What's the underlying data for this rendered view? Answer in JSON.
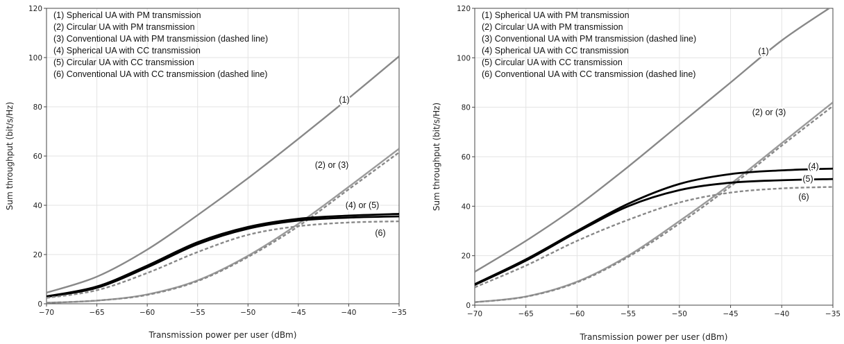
{
  "chart_data": [
    {
      "type": "line",
      "xlabel": "Transmission power per user (dBm)",
      "ylabel": "Sum throughput (bit/s/Hz)",
      "xlim": [
        -70,
        -35
      ],
      "ylim": [
        0,
        120
      ],
      "x_ticks": [
        "−70",
        "−65",
        "−60",
        "−55",
        "−50",
        "−45",
        "−40",
        "−35"
      ],
      "y_ticks": [
        "0",
        "20",
        "40",
        "60",
        "80",
        "100",
        "120"
      ],
      "grid": true,
      "legend_position": "top-left",
      "legend": [
        "(1) Spherical UA with PM transmission",
        "(2) Circular UA with PM transmission",
        "(3) Conventional UA with PM transmission (dashed line)",
        "(4) Spherical UA with CC transmission",
        "(5) Circular UA with CC transmission",
        "(6) Conventional UA with CC transmission (dashed line)"
      ],
      "x": [
        -70,
        -65,
        -60,
        -55,
        -50,
        -45,
        -40,
        -35
      ],
      "series": [
        {
          "name": "(1) Spherical UA with PM transmission",
          "style": "solid",
          "color": "#888888",
          "values": [
            4.5,
            11,
            22,
            36,
            51,
            67,
            83.5,
            100.5
          ]
        },
        {
          "name": "(2) Circular UA with PM transmission",
          "style": "solid",
          "color": "#9a9a9a",
          "values": [
            0.4,
            1.3,
            3.8,
            9.5,
            19.5,
            32.5,
            47.5,
            63
          ]
        },
        {
          "name": "(3) Conventional UA with PM transmission (dashed line)",
          "style": "dashed",
          "color": "#888888",
          "values": [
            0.4,
            1.3,
            3.6,
            9.2,
            19,
            31.5,
            46.5,
            61.5
          ]
        },
        {
          "name": "(4) Spherical UA with CC transmission",
          "style": "solid",
          "color": "#000000",
          "values": [
            3.0,
            7.0,
            15.5,
            25.0,
            31.2,
            34.5,
            35.8,
            36.5
          ]
        },
        {
          "name": "(5) Circular UA with CC transmission",
          "style": "solid",
          "color": "#000000",
          "values": [
            2.8,
            6.5,
            14.8,
            24.2,
            30.5,
            33.8,
            35.0,
            35.5
          ]
        },
        {
          "name": "(6) Conventional UA with CC transmission (dashed line)",
          "style": "dashed",
          "color": "#888888",
          "values": [
            2.4,
            5.5,
            12.5,
            21.0,
            28.0,
            31.5,
            33.0,
            33.5
          ]
        }
      ],
      "annotations": [
        "(1)",
        "(2) or (3)",
        "(4) or (5)",
        "(6)"
      ]
    },
    {
      "type": "line",
      "xlabel": "Transmission power per user (dBm)",
      "ylabel": "Sum throughput (bit/s/Hz)",
      "xlim": [
        -70,
        -35
      ],
      "ylim": [
        0,
        120
      ],
      "x_ticks": [
        "−70",
        "−65",
        "−60",
        "−55",
        "−50",
        "−45",
        "−40",
        "−35"
      ],
      "y_ticks": [
        "0",
        "20",
        "40",
        "60",
        "80",
        "100",
        "120"
      ],
      "grid": true,
      "legend_position": "top-left",
      "legend": [
        "(1) Spherical UA with PM transmission",
        "(2) Circular UA with PM transmission",
        "(3) Conventional UA with PM transmission (dashed line)",
        "(4) Spherical UA with CC transmission",
        "(5) Circular UA with CC transmission",
        "(6) Conventional UA with CC transmission (dashed line)"
      ],
      "x": [
        -70,
        -65,
        -60,
        -55,
        -50,
        -45,
        -40,
        -35
      ],
      "series": [
        {
          "name": "(1) Spherical UA with PM transmission",
          "style": "solid",
          "color": "#888888",
          "values": [
            13.5,
            26,
            40,
            56,
            73,
            90,
            107,
            121
          ]
        },
        {
          "name": "(2) Circular UA with PM transmission",
          "style": "solid",
          "color": "#9a9a9a",
          "values": [
            1.2,
            3.5,
            9.5,
            20,
            34,
            49,
            65.5,
            82
          ]
        },
        {
          "name": "(3) Conventional UA with PM transmission (dashed line)",
          "style": "dashed",
          "color": "#888888",
          "values": [
            1.2,
            3.4,
            9.2,
            19.5,
            33,
            48,
            64.5,
            80.5
          ]
        },
        {
          "name": "(4) Spherical UA with CC transmission",
          "style": "solid",
          "color": "#000000",
          "values": [
            8.5,
            18.5,
            30,
            41,
            49,
            53,
            54.5,
            55.2
          ]
        },
        {
          "name": "(5) Circular UA with CC transmission",
          "style": "solid",
          "color": "#000000",
          "values": [
            8.2,
            18,
            29.5,
            40,
            46.5,
            49.5,
            50.5,
            51
          ]
        },
        {
          "name": "(6) Conventional UA with CC transmission (dashed line)",
          "style": "dashed",
          "color": "#888888",
          "values": [
            7.2,
            16,
            26,
            34.5,
            41.5,
            45.5,
            47.2,
            47.8
          ]
        }
      ],
      "annotations": [
        "(1)",
        "(2) or (3)",
        "(4)",
        "(5)",
        "(6)"
      ]
    }
  ]
}
